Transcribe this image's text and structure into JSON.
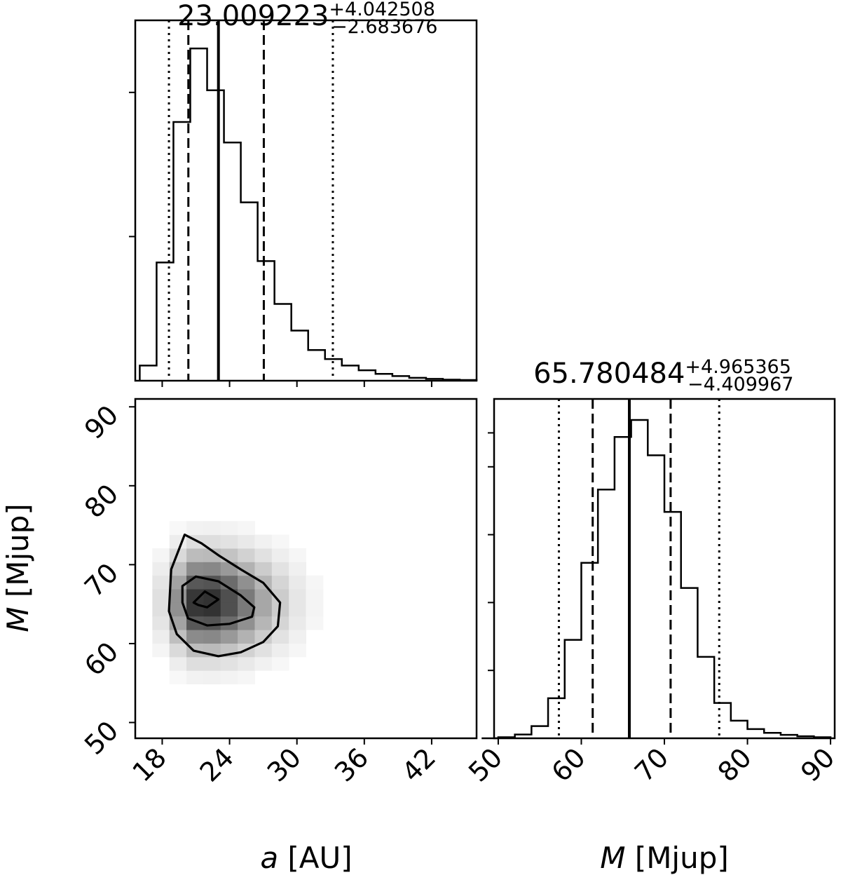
{
  "chart_data": [
    {
      "type": "histogram",
      "parameter": "a",
      "title": "23.009223",
      "title_err_plus": "+4.042508",
      "title_err_minus": "−2.683676",
      "median": 23.009223,
      "quantiles_68": [
        20.33,
        27.05
      ],
      "quantiles_95": [
        18.6,
        33.2
      ],
      "bin_edges": [
        16.0,
        17.5,
        19.0,
        20.5,
        22.0,
        23.5,
        25.0,
        26.5,
        28.0,
        29.5,
        31.0,
        32.5,
        34.0,
        35.5,
        37.0,
        38.5,
        40.0,
        41.5,
        43.0,
        44.5,
        46.0
      ],
      "counts": [
        0.042,
        0.328,
        0.718,
        0.922,
        0.806,
        0.661,
        0.495,
        0.332,
        0.213,
        0.139,
        0.085,
        0.06,
        0.042,
        0.029,
        0.019,
        0.013,
        0.008,
        0.005,
        0.003,
        0.002
      ],
      "xlim": [
        15.6,
        46.0
      ],
      "ylim": [
        0,
        1.0
      ],
      "ytick_values": [
        0.4,
        0.8
      ]
    },
    {
      "type": "histogram",
      "parameter": "M",
      "title": "65.780484",
      "title_err_plus": "+4.965365",
      "title_err_minus": "−4.409967",
      "median": 65.780484,
      "quantiles_68": [
        61.37,
        70.75
      ],
      "quantiles_95": [
        57.3,
        76.6
      ],
      "bin_edges": [
        48.0,
        50.0,
        52.0,
        54.0,
        56.0,
        58.0,
        60.0,
        62.0,
        64.0,
        66.0,
        68.0,
        70.0,
        72.0,
        74.0,
        76.0,
        78.0,
        80.0,
        82.0,
        84.0,
        86.0,
        88.0,
        90.0
      ],
      "counts": [
        0.0,
        0.003,
        0.011,
        0.036,
        0.118,
        0.29,
        0.517,
        0.733,
        0.888,
        0.938,
        0.834,
        0.667,
        0.443,
        0.24,
        0.104,
        0.052,
        0.027,
        0.016,
        0.01,
        0.006,
        0.003
      ],
      "xlim": [
        49.5,
        90.5
      ],
      "xticks": [
        "50",
        "60",
        "70",
        "80",
        "90"
      ],
      "xlabel_var": "M",
      "xlabel_unit": "[Mjup]",
      "ylim": [
        0,
        1.0
      ]
    },
    {
      "type": "heatmap",
      "x": "a",
      "y": "M",
      "xlim": [
        15.6,
        46.0
      ],
      "ylim": [
        48.0,
        91.0
      ],
      "xticks": [
        "18",
        "24",
        "30",
        "36",
        "42"
      ],
      "yticks": [
        "50",
        "60",
        "70",
        "80",
        "90"
      ],
      "xlabel_var": "a",
      "xlabel_unit": "[AU]",
      "ylabel_var": "M",
      "ylabel_unit": "[Mjup]",
      "peak": [
        21.5,
        65.2
      ],
      "contours": [
        {
          "level": "inner",
          "points": [
            [
              20.8,
              65.2
            ],
            [
              21.8,
              66.6
            ],
            [
              23.0,
              65.6
            ],
            [
              22.0,
              64.6
            ],
            [
              21.2,
              64.9
            ]
          ]
        },
        {
          "level": "middle",
          "points": [
            [
              19.8,
              67.3
            ],
            [
              21.0,
              68.5
            ],
            [
              23.0,
              67.9
            ],
            [
              25.0,
              66.1
            ],
            [
              26.2,
              64.6
            ],
            [
              26.0,
              63.4
            ],
            [
              24.0,
              62.5
            ],
            [
              22.0,
              62.3
            ],
            [
              20.3,
              63.2
            ],
            [
              19.8,
              65.2
            ]
          ]
        },
        {
          "level": "outer",
          "points": [
            [
              18.8,
              69.4
            ],
            [
              20.0,
              73.8
            ],
            [
              21.5,
              72.7
            ],
            [
              23.0,
              71.2
            ],
            [
              25.0,
              69.4
            ],
            [
              27.0,
              67.7
            ],
            [
              28.5,
              65.2
            ],
            [
              28.3,
              62.2
            ],
            [
              27.0,
              60.2
            ],
            [
              25.0,
              58.9
            ],
            [
              23.0,
              58.4
            ],
            [
              20.8,
              59.1
            ],
            [
              19.3,
              61.2
            ],
            [
              18.6,
              64.1
            ]
          ]
        }
      ]
    }
  ]
}
